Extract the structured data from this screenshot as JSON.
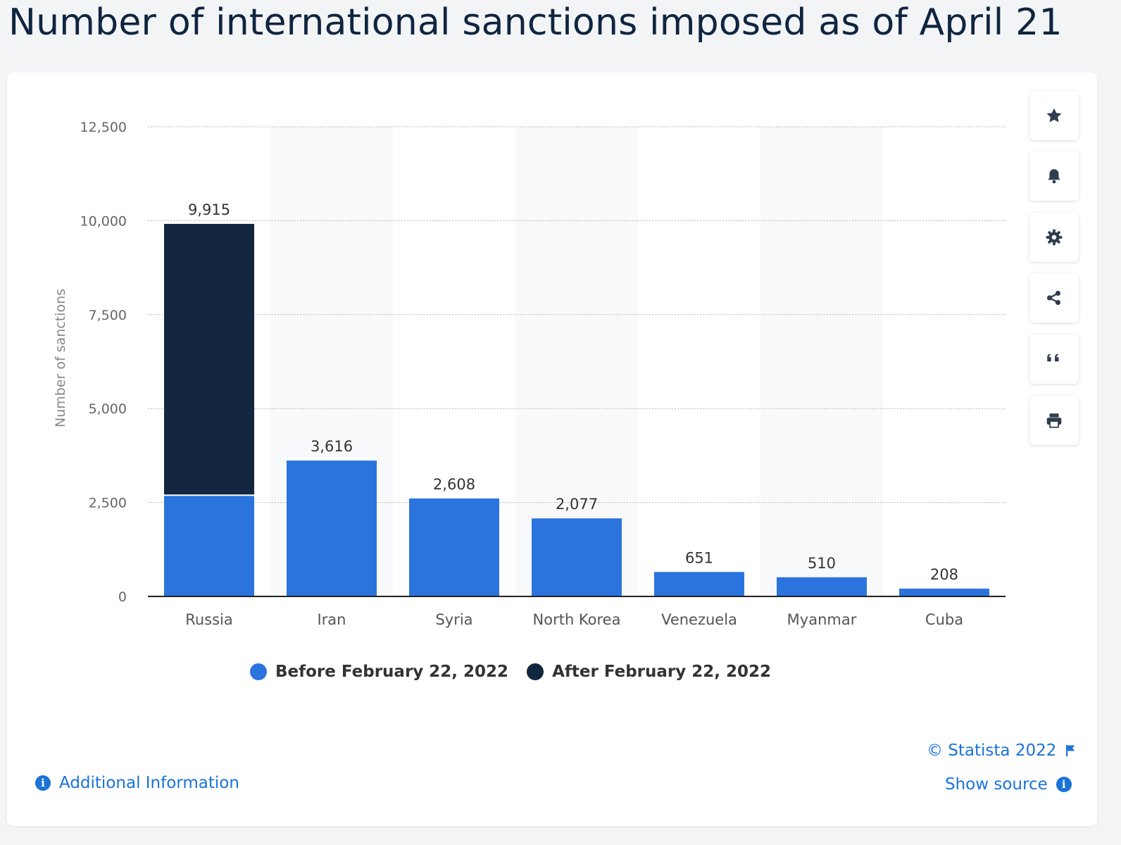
{
  "page": {
    "title": "Number of international sanctions imposed as of April 21"
  },
  "toolbar": [
    {
      "name": "favorite-button",
      "icon": "star-icon"
    },
    {
      "name": "notification-button",
      "icon": "bell-icon"
    },
    {
      "name": "settings-button",
      "icon": "gear-icon"
    },
    {
      "name": "share-button",
      "icon": "share-icon"
    },
    {
      "name": "cite-button",
      "icon": "quote-icon"
    },
    {
      "name": "print-button",
      "icon": "printer-icon"
    }
  ],
  "legend": [
    {
      "label": "Before February 22, 2022",
      "color": "#2b74dd"
    },
    {
      "label": "After February 22, 2022",
      "color": "#12263f"
    }
  ],
  "footer": {
    "copyright": "© Statista 2022",
    "show_source": "Show source",
    "additional_info": "Additional Information"
  },
  "chart_data": {
    "type": "bar",
    "stacked": true,
    "ylabel": "Number of sanctions",
    "ylim": [
      0,
      12500
    ],
    "yticks": [
      0,
      2500,
      5000,
      7500,
      10000,
      12500
    ],
    "ytick_labels": [
      "0",
      "2,500",
      "5,000",
      "7,500",
      "10,000",
      "12,500"
    ],
    "grid": true,
    "categories": [
      "Russia",
      "Iran",
      "Syria",
      "North Korea",
      "Venezuela",
      "Myanmar",
      "Cuba"
    ],
    "series": [
      {
        "name": "Before February 22, 2022",
        "color": "#2b74dd",
        "values": [
          2695,
          3616,
          2608,
          2077,
          651,
          510,
          208
        ]
      },
      {
        "name": "After February 22, 2022",
        "color": "#12263f",
        "values": [
          7220,
          0,
          0,
          0,
          0,
          0,
          0
        ]
      }
    ],
    "total_labels": [
      "9,915",
      "3,616",
      "2,608",
      "2,077",
      "651",
      "510",
      "208"
    ]
  }
}
